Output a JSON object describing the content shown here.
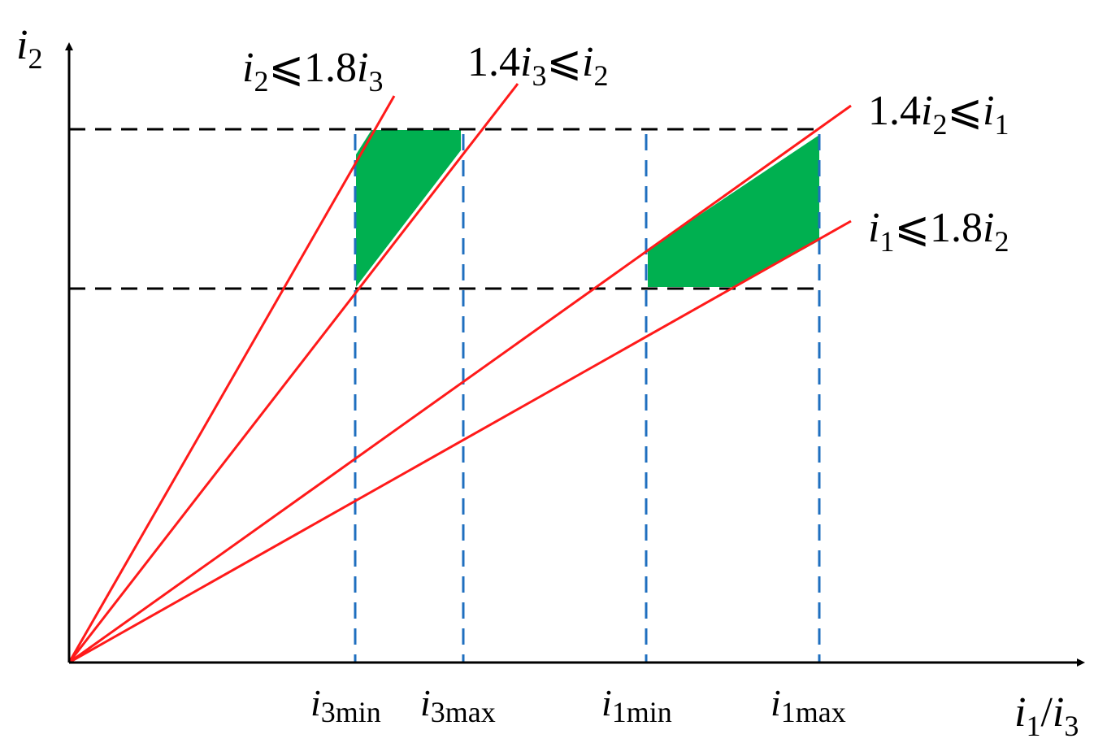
{
  "axes": {
    "y_label": {
      "main": "i",
      "sub": "2"
    },
    "x_label": {
      "a": "i",
      "a_sub": "1",
      "sep": "/",
      "b": "i",
      "b_sub": "3"
    }
  },
  "constraints": [
    {
      "id": "c1",
      "parts": [
        [
          "i",
          "it"
        ],
        [
          "2",
          "sub"
        ],
        [
          "⩽1.8",
          ""
        ],
        [
          "i",
          "it"
        ],
        [
          "3",
          "sub"
        ]
      ]
    },
    {
      "id": "c2",
      "parts": [
        [
          "1.4",
          ""
        ],
        [
          "i",
          "it"
        ],
        [
          "3",
          "sub"
        ],
        [
          "⩽",
          ""
        ],
        [
          "i",
          "it"
        ],
        [
          "2",
          "sub"
        ]
      ]
    },
    {
      "id": "c3",
      "parts": [
        [
          "1.4",
          ""
        ],
        [
          "i",
          "it"
        ],
        [
          "2",
          "sub"
        ],
        [
          "⩽",
          ""
        ],
        [
          "i",
          "it"
        ],
        [
          "1",
          "sub"
        ]
      ]
    },
    {
      "id": "c4",
      "parts": [
        [
          "i",
          "it"
        ],
        [
          "1",
          "sub"
        ],
        [
          "⩽1.8",
          ""
        ],
        [
          "i",
          "it"
        ],
        [
          "2",
          "sub"
        ]
      ]
    }
  ],
  "ticks": [
    {
      "main": "i",
      "sub": "3min"
    },
    {
      "main": "i",
      "sub": "3max"
    },
    {
      "main": "i",
      "sub": "1min"
    },
    {
      "main": "i",
      "sub": "1max"
    }
  ],
  "colors": {
    "axis": "#000000",
    "boundary_line": "#ff1a1a",
    "limit_dash_h": "#000000",
    "limit_dash_v": "#1f6fbf",
    "feasible_region": "#00b050"
  }
}
